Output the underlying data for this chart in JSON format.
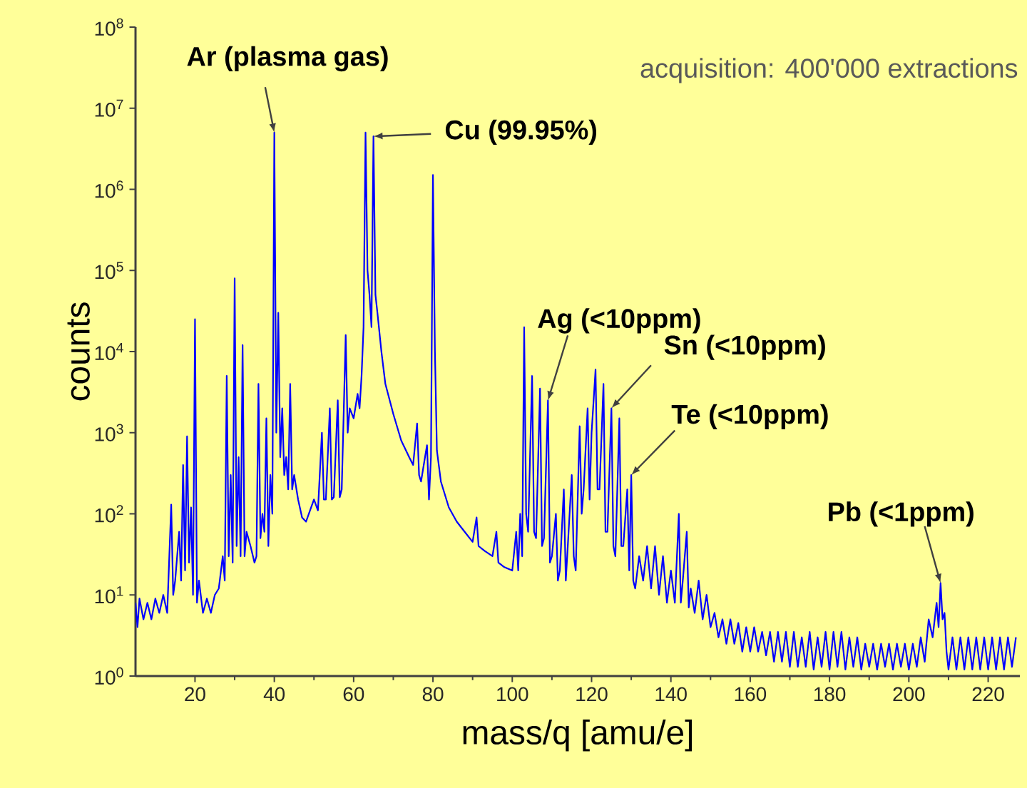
{
  "chart_data": {
    "type": "line",
    "xlabel": "mass/q [amu/e]",
    "ylabel": "counts",
    "log": "y",
    "grid": false,
    "marker": "none",
    "line_style": "solid",
    "xlim": [
      5,
      228
    ],
    "xticks": [
      20,
      40,
      60,
      80,
      100,
      120,
      140,
      160,
      180,
      200,
      220
    ],
    "ylim": [
      1,
      100000000
    ],
    "yticks": [
      {
        "value": 1,
        "label": "10$^{0}$"
      },
      {
        "value": 10,
        "label": "10$^{1}$"
      },
      {
        "value": 100,
        "label": "10$^{2}$"
      },
      {
        "value": 1000,
        "label": "10$^{3}$"
      },
      {
        "value": 10000,
        "label": "10$^{4}$"
      },
      {
        "value": 100000,
        "label": "10$^{5}$"
      },
      {
        "value": 1000000,
        "label": "10$^{6}$"
      },
      {
        "value": 10000000,
        "label": "10$^{7}$"
      },
      {
        "value": 100000000,
        "label": "10$^{8}$"
      }
    ],
    "annotations": [
      {
        "text": "Ar (plasma gas)",
        "x": 40,
        "y": 5000000
      },
      {
        "text": "Cu (99.95%)",
        "x": 65,
        "y": 4500000
      },
      {
        "text": "Ag (<10ppm)",
        "x": 109,
        "y": 2500
      },
      {
        "text": "Sn (<10ppm)",
        "x": 125,
        "y": 2000
      },
      {
        "text": "Te (<10ppm)",
        "x": 130,
        "y": 300
      },
      {
        "text": "Pb (<1ppm)",
        "x": 208,
        "y": 14
      },
      "acquisition: 400'000 extractions"
    ],
    "series": [
      {
        "color": "#0000ff",
        "x": [
          5,
          5.5,
          6,
          7,
          8,
          9,
          10,
          11,
          12,
          13,
          14,
          14.5,
          15,
          16,
          16.5,
          17,
          17.5,
          18,
          18.5,
          19,
          19.5,
          20,
          20.5,
          21,
          22,
          23,
          24,
          25,
          26,
          27,
          27.5,
          28,
          28.5,
          29,
          29.5,
          30,
          30.5,
          31,
          31.5,
          32,
          32.5,
          33,
          34,
          35,
          35.5,
          36,
          36.5,
          37,
          37.5,
          38,
          38.5,
          39,
          39.5,
          40,
          40.5,
          41,
          41.5,
          42,
          42.5,
          43,
          43.5,
          44,
          44.5,
          45,
          46,
          47,
          48,
          49,
          50,
          51,
          52,
          52.5,
          53,
          54,
          54.5,
          55,
          56,
          56.5,
          57,
          58,
          58.5,
          59,
          60,
          61,
          61.5,
          62,
          62.5,
          63,
          63.5,
          64,
          64.5,
          65,
          65.5,
          66,
          67,
          68,
          70,
          72,
          74,
          75,
          76,
          76.5,
          77,
          78,
          78.5,
          79,
          79.5,
          80,
          80.5,
          81,
          82,
          84,
          86,
          88,
          90,
          91,
          91.5,
          93,
          95,
          96,
          96.5,
          98,
          100,
          101,
          101.5,
          102,
          102.5,
          103,
          103.5,
          104,
          105,
          105.5,
          106,
          107,
          107.5,
          108,
          109,
          109.5,
          110,
          111,
          111.5,
          112,
          113,
          113.5,
          114,
          115,
          115.5,
          116,
          117,
          117.5,
          118,
          119,
          119.5,
          120,
          121,
          121.5,
          122,
          123,
          123.5,
          124,
          125,
          125.5,
          126,
          127,
          127.5,
          128,
          129,
          129.5,
          130,
          130.5,
          131,
          132,
          133,
          134,
          135,
          136,
          137,
          138,
          139,
          140,
          141,
          142,
          142.5,
          143,
          144,
          144.5,
          145,
          146,
          147,
          148,
          149,
          150,
          151,
          152,
          153,
          154,
          155,
          156,
          157,
          158,
          159,
          160,
          161,
          162,
          163,
          164,
          165,
          166,
          167,
          168,
          169,
          170,
          171,
          172,
          173,
          174,
          175,
          176,
          177,
          178,
          179,
          180,
          181,
          182,
          183,
          184,
          185,
          186,
          187,
          188,
          189,
          190,
          191,
          192,
          193,
          194,
          195,
          196,
          197,
          198,
          199,
          200,
          201,
          202,
          203,
          204,
          205,
          206,
          207,
          207.5,
          208,
          208.5,
          209,
          209.5,
          210,
          211,
          212,
          213,
          214,
          215,
          216,
          217,
          218,
          219,
          220,
          221,
          222,
          223,
          224,
          225,
          226,
          227
        ],
        "values": [
          8,
          4,
          9,
          5,
          8,
          5,
          9,
          6,
          10,
          6,
          130,
          10,
          15,
          60,
          15,
          400,
          20,
          900,
          25,
          120,
          10,
          25000,
          8,
          15,
          6,
          9,
          6,
          10,
          12,
          30,
          15,
          5000,
          30,
          300,
          25,
          80000,
          40,
          500,
          30,
          12000,
          30,
          60,
          40,
          25,
          30,
          4000,
          50,
          100,
          60,
          1500,
          40,
          300,
          100,
          5000000,
          1000,
          30000,
          500,
          2000,
          300,
          500,
          200,
          4000,
          200,
          300,
          150,
          90,
          80,
          110,
          150,
          110,
          1000,
          150,
          150,
          2000,
          150,
          160,
          2500,
          160,
          200,
          16000,
          1000,
          2000,
          1500,
          3000,
          2000,
          5000,
          20000,
          5000000,
          100000,
          50000,
          20000,
          4500000,
          50000,
          30000,
          10000,
          4000,
          1700,
          800,
          500,
          400,
          1300,
          300,
          250,
          500,
          700,
          150,
          500,
          1500000,
          10000,
          600,
          250,
          120,
          80,
          60,
          45,
          90,
          40,
          35,
          30,
          60,
          25,
          22,
          20,
          60,
          20,
          100,
          30,
          20000,
          100,
          60,
          5000,
          60,
          50,
          3500,
          40,
          50,
          2500,
          25,
          30,
          100,
          15,
          20,
          200,
          15,
          40,
          300,
          30,
          20,
          1200,
          100,
          200,
          2000,
          150,
          1000,
          6000,
          200,
          200,
          4000,
          60,
          60,
          2000,
          40,
          30,
          1500,
          40,
          40,
          200,
          20,
          300,
          15,
          12,
          30,
          15,
          40,
          12,
          40,
          10,
          30,
          8,
          20,
          8,
          100,
          8,
          15,
          60,
          7,
          12,
          6,
          15,
          5,
          10,
          4,
          6,
          3,
          5,
          2.5,
          5,
          2.5,
          4.5,
          2,
          4,
          2,
          4,
          2,
          3.5,
          1.8,
          3.5,
          1.5,
          3.5,
          1.5,
          3.5,
          1.3,
          3.5,
          1.3,
          3,
          1.3,
          3.5,
          1.2,
          3,
          1.3,
          3.5,
          1.2,
          3.5,
          1.3,
          3.5,
          1.2,
          3,
          1.3,
          3,
          1.2,
          2.5,
          1.3,
          2.5,
          1.2,
          2.5,
          1.3,
          2.5,
          1.2,
          2.5,
          1.3,
          2.5,
          1.2,
          2.5,
          1.3,
          3,
          1.5,
          5,
          3,
          8,
          4,
          14,
          5,
          6,
          2,
          1.2,
          3,
          1.2,
          3,
          1.2,
          3,
          1.2,
          3,
          1.2,
          3,
          1.2,
          3,
          1.2,
          3,
          1.2,
          3,
          1.3,
          3
        ]
      }
    ]
  }
}
